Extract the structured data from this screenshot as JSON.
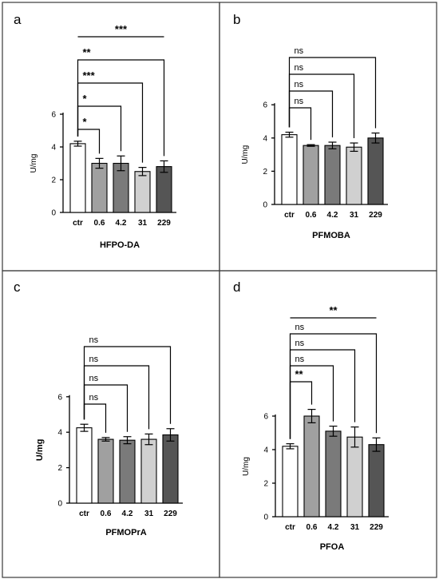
{
  "chart_data": [
    {
      "panel": "a",
      "type": "bar",
      "categories": [
        "ctr",
        "0.6",
        "4.2",
        "31",
        "229"
      ],
      "values": [
        4.2,
        3.0,
        3.0,
        2.5,
        2.8
      ],
      "errors": [
        0.15,
        0.3,
        0.45,
        0.25,
        0.35
      ],
      "colors": [
        "#ffffff",
        "#a0a0a0",
        "#7a7a7a",
        "#d0d0d0",
        "#555555"
      ],
      "xlabel": "HFPO-DA",
      "ylabel": "U/mg",
      "ylabel_bold": false,
      "ylim": [
        0,
        6
      ],
      "yticks": [
        0,
        2,
        4,
        6
      ],
      "comparisons": [
        {
          "from": 0,
          "to": 1,
          "label": "*"
        },
        {
          "from": 0,
          "to": 2,
          "label": "*"
        },
        {
          "from": 0,
          "to": 3,
          "label": "***"
        },
        {
          "from": 0,
          "to": 4,
          "label": "**"
        },
        {
          "from": 0,
          "to": 4,
          "label": "***",
          "line_only": true
        }
      ]
    },
    {
      "panel": "b",
      "type": "bar",
      "categories": [
        "ctr",
        "0.6",
        "4.2",
        "31",
        "229"
      ],
      "values": [
        4.2,
        3.55,
        3.55,
        3.45,
        4.0
      ],
      "errors": [
        0.15,
        0.05,
        0.2,
        0.25,
        0.3
      ],
      "colors": [
        "#ffffff",
        "#a0a0a0",
        "#7a7a7a",
        "#d0d0d0",
        "#555555"
      ],
      "xlabel": "PFMOBA",
      "ylabel": "U/mg",
      "ylabel_bold": false,
      "ylim": [
        0,
        6
      ],
      "yticks": [
        0,
        2,
        4,
        6
      ],
      "comparisons": [
        {
          "from": 0,
          "to": 1,
          "label": "ns"
        },
        {
          "from": 0,
          "to": 2,
          "label": "ns"
        },
        {
          "from": 0,
          "to": 3,
          "label": "ns"
        },
        {
          "from": 0,
          "to": 4,
          "label": "ns"
        }
      ]
    },
    {
      "panel": "c",
      "type": "bar",
      "categories": [
        "ctr",
        "0.6",
        "4.2",
        "31",
        "229"
      ],
      "values": [
        4.25,
        3.6,
        3.55,
        3.6,
        3.85
      ],
      "errors": [
        0.2,
        0.1,
        0.2,
        0.3,
        0.35
      ],
      "colors": [
        "#ffffff",
        "#a0a0a0",
        "#7a7a7a",
        "#d0d0d0",
        "#555555"
      ],
      "xlabel": "PFMOPrA",
      "ylabel": "U/mg",
      "ylabel_bold": true,
      "ylim": [
        0,
        6
      ],
      "yticks": [
        0,
        2,
        4,
        6
      ],
      "comparisons": [
        {
          "from": 0,
          "to": 1,
          "label": "ns"
        },
        {
          "from": 0,
          "to": 2,
          "label": "ns"
        },
        {
          "from": 0,
          "to": 3,
          "label": "ns"
        },
        {
          "from": 0,
          "to": 4,
          "label": "ns"
        }
      ]
    },
    {
      "panel": "d",
      "type": "bar",
      "categories": [
        "ctr",
        "0.6",
        "4.2",
        "31",
        "229"
      ],
      "values": [
        4.2,
        6.0,
        5.1,
        4.75,
        4.3
      ],
      "errors": [
        0.15,
        0.4,
        0.3,
        0.6,
        0.4
      ],
      "colors": [
        "#ffffff",
        "#a0a0a0",
        "#7a7a7a",
        "#d0d0d0",
        "#555555"
      ],
      "xlabel": "PFOA",
      "ylabel": "U/mg",
      "ylabel_bold": false,
      "ylim": [
        0,
        6
      ],
      "yticks": [
        0,
        2,
        4,
        6
      ],
      "comparisons": [
        {
          "from": 0,
          "to": 1,
          "label": "**"
        },
        {
          "from": 0,
          "to": 2,
          "label": "ns"
        },
        {
          "from": 0,
          "to": 3,
          "label": "ns"
        },
        {
          "from": 0,
          "to": 4,
          "label": "ns"
        },
        {
          "from": 0,
          "to": 4,
          "label": "**",
          "line_only": true
        }
      ]
    }
  ]
}
